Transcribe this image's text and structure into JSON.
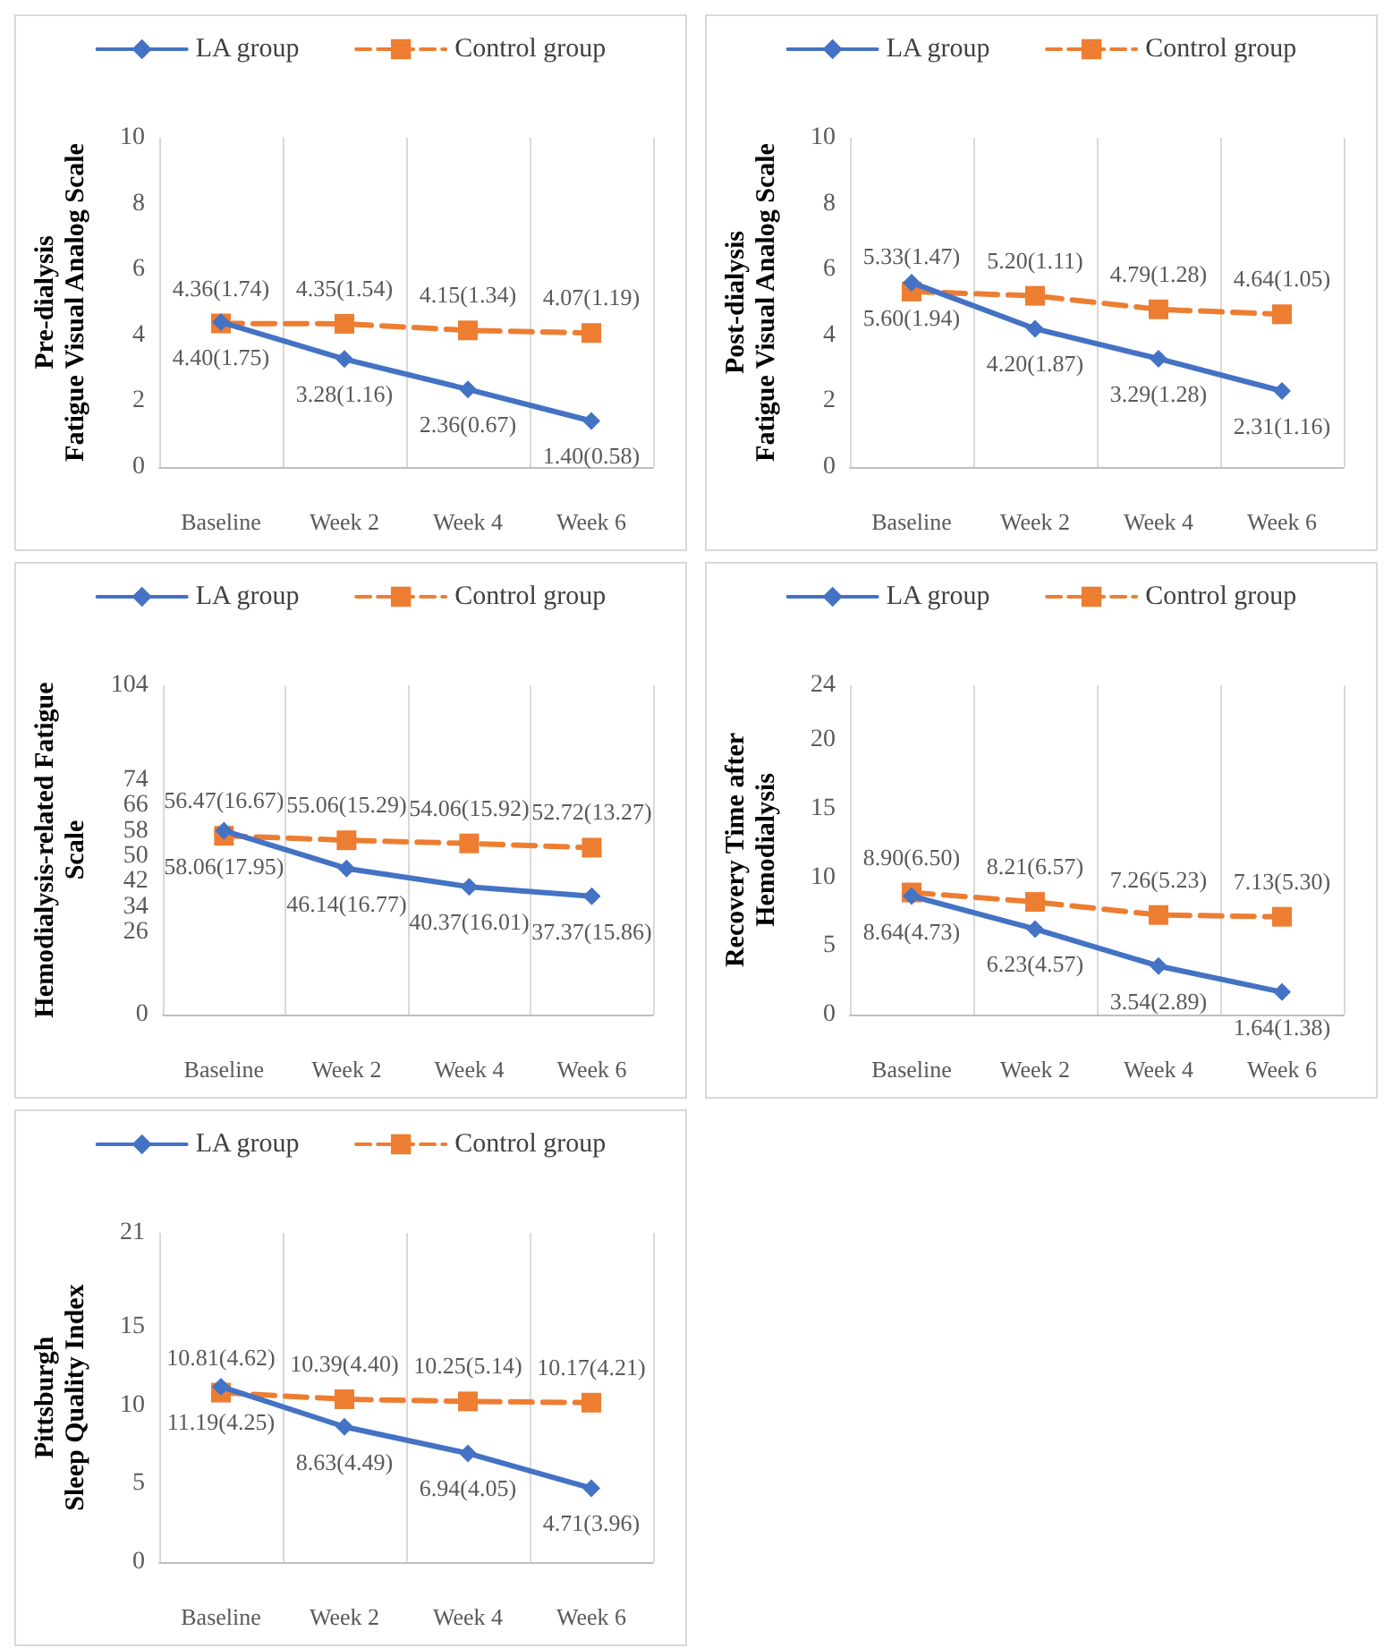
{
  "chart_data": [
    {
      "type": "line",
      "ylabel": "Pre-dialysis\nFatigue Visual Analog Scale",
      "categories": [
        "Baseline",
        "Week 2",
        "Week 4",
        "Week 6"
      ],
      "ylim": [
        0,
        10
      ],
      "yticks": [
        0,
        2,
        4,
        6,
        8,
        10
      ],
      "grid": "x",
      "legend": "top",
      "series": [
        {
          "name": "LA group",
          "color": "#4472c4",
          "marker": "diamond",
          "line_style": "solid",
          "values": [
            4.4,
            3.28,
            2.36,
            1.4
          ],
          "value_labels": [
            "4.40(1.75)",
            "3.28(1.16)",
            "2.36(0.67)",
            "1.40(0.58)"
          ]
        },
        {
          "name": "Control group",
          "color": "#ed7d31",
          "marker": "square",
          "line_style": "dashed",
          "values": [
            4.36,
            4.35,
            4.15,
            4.07
          ],
          "value_labels": [
            "4.36(1.74)",
            "4.35(1.54)",
            "4.15(1.34)",
            "4.07(1.19)"
          ]
        }
      ]
    },
    {
      "type": "line",
      "ylabel": "Post-dialysis\nFatigue Visual Analog Scale",
      "categories": [
        "Baseline",
        "Week 2",
        "Week 4",
        "Week 6"
      ],
      "ylim": [
        0,
        10
      ],
      "yticks": [
        0,
        2,
        4,
        6,
        8,
        10
      ],
      "grid": "x",
      "legend": "top",
      "series": [
        {
          "name": "LA group",
          "color": "#4472c4",
          "marker": "diamond",
          "line_style": "solid",
          "values": [
            5.6,
            4.2,
            3.29,
            2.31
          ],
          "value_labels": [
            "5.60(1.94)",
            "4.20(1.87)",
            "3.29(1.28)",
            "2.31(1.16)"
          ]
        },
        {
          "name": "Control group",
          "color": "#ed7d31",
          "marker": "square",
          "line_style": "dashed",
          "values": [
            5.33,
            5.2,
            4.79,
            4.64
          ],
          "value_labels": [
            "5.33(1.47)",
            "5.20(1.11)",
            "4.79(1.28)",
            "4.64(1.05)"
          ]
        }
      ]
    },
    {
      "type": "line",
      "ylabel": "Hemodialysis-related Fatigue\nScale",
      "categories": [
        "Baseline",
        "Week 2",
        "Week 4",
        "Week 6"
      ],
      "ylim": [
        0,
        104
      ],
      "yticks": [
        0,
        26,
        34,
        42,
        50,
        58,
        66,
        74,
        104
      ],
      "grid": "x",
      "legend": "top",
      "series": [
        {
          "name": "LA group",
          "color": "#4472c4",
          "marker": "diamond",
          "line_style": "solid",
          "values": [
            58.06,
            46.14,
            40.37,
            37.37
          ],
          "value_labels": [
            "58.06(17.95)",
            "46.14(16.77)",
            "40.37(16.01)",
            "37.37(15.86)"
          ]
        },
        {
          "name": "Control group",
          "color": "#ed7d31",
          "marker": "square",
          "line_style": "dashed",
          "values": [
            56.47,
            55.06,
            54.06,
            52.72
          ],
          "value_labels": [
            "56.47(16.67)",
            "55.06(15.29)",
            "54.06(15.92)",
            "52.72(13.27)"
          ]
        }
      ]
    },
    {
      "type": "line",
      "ylabel": "Recovery Time after\nHemodialysis",
      "categories": [
        "Baseline",
        "Week 2",
        "Week 4",
        "Week 6"
      ],
      "ylim": [
        0,
        24
      ],
      "yticks": [
        0,
        5,
        10,
        15,
        20,
        24
      ],
      "grid": "x",
      "legend": "top",
      "series": [
        {
          "name": "LA group",
          "color": "#4472c4",
          "marker": "diamond",
          "line_style": "solid",
          "values": [
            8.64,
            6.23,
            3.54,
            1.64
          ],
          "value_labels": [
            "8.64(4.73)",
            "6.23(4.57)",
            "3.54(2.89)",
            "1.64(1.38)"
          ]
        },
        {
          "name": "Control group",
          "color": "#ed7d31",
          "marker": "square",
          "line_style": "dashed",
          "values": [
            8.9,
            8.21,
            7.26,
            7.13
          ],
          "value_labels": [
            "8.90(6.50)",
            "8.21(6.57)",
            "7.26(5.23)",
            "7.13(5.30)"
          ]
        }
      ]
    },
    {
      "type": "line",
      "ylabel": "Pittsburgh\nSleep Quality Index",
      "categories": [
        "Baseline",
        "Week 2",
        "Week 4",
        "Week 6"
      ],
      "ylim": [
        0,
        21
      ],
      "yticks": [
        0,
        5,
        10,
        15,
        21
      ],
      "grid": "x",
      "legend": "top",
      "series": [
        {
          "name": "LA group",
          "color": "#4472c4",
          "marker": "diamond",
          "line_style": "solid",
          "values": [
            11.19,
            8.63,
            6.94,
            4.71
          ],
          "value_labels": [
            "11.19(4.25)",
            "8.63(4.49)",
            "6.94(4.05)",
            "4.71(3.96)"
          ]
        },
        {
          "name": "Control group",
          "color": "#ed7d31",
          "marker": "square",
          "line_style": "dashed",
          "values": [
            10.81,
            10.39,
            10.25,
            10.17
          ],
          "value_labels": [
            "10.81(4.62)",
            "10.39(4.40)",
            "10.25(5.14)",
            "10.17(4.21)"
          ]
        }
      ]
    }
  ]
}
